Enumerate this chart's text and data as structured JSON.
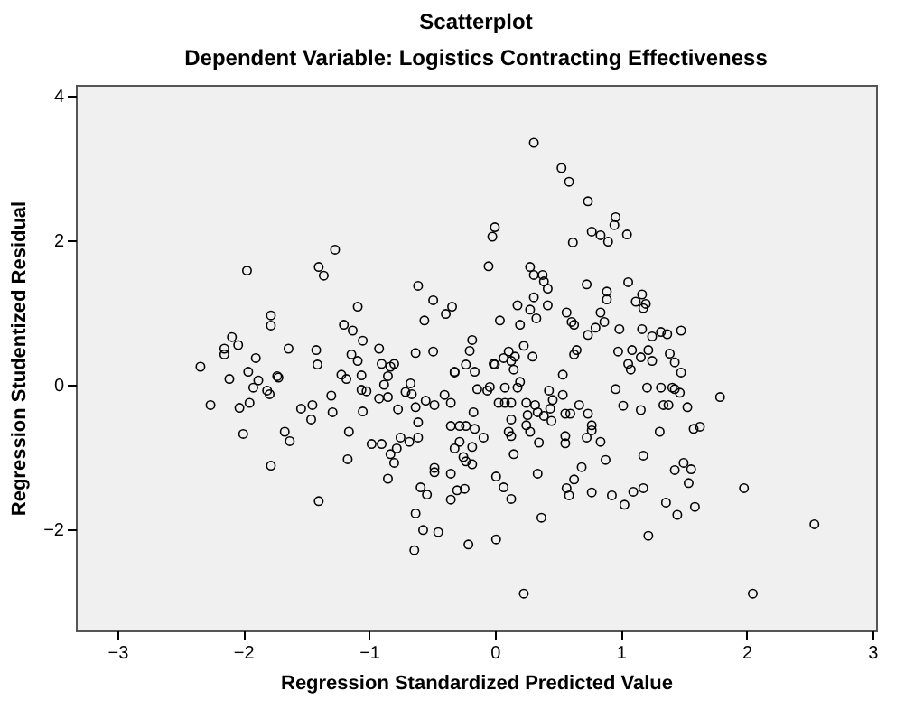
{
  "chart_data": {
    "type": "scatter",
    "title": "Scatterplot",
    "subtitle": "Dependent Variable: Logistics Contracting Effectiveness",
    "xlabel": "Regression Standardized Predicted Value",
    "ylabel": "Regression Studentized Residual",
    "xlim": [
      -3.33,
      3.03
    ],
    "ylim": [
      -3.4,
      4.15
    ],
    "xticks": [
      -3,
      -2,
      -1,
      0,
      1,
      2,
      3
    ],
    "yticks": [
      -2,
      0,
      2,
      4
    ],
    "grid": false,
    "marker": "circle",
    "series": [
      {
        "color": "#000000",
        "x": [
          -1.97,
          -1.4,
          -1.36,
          -1.27,
          -1.78,
          -1.78,
          -1.09,
          -1.2,
          -1.13,
          -1.05,
          -0.61,
          -0.49,
          -0.34,
          -0.39,
          -0.56,
          -2.09,
          -2.04,
          -2.15,
          -2.15,
          -1.9,
          -1.64,
          -1.42,
          -1.41,
          -2.34,
          -1.96,
          -1.73,
          -1.14,
          -1.09,
          -0.92,
          -0.9,
          -0.83,
          -0.63,
          -0.49,
          -0.18,
          -0.2,
          -0.32,
          0.31,
          0.53,
          0.59,
          0.74,
          0.96,
          0.95,
          0.77,
          0.84,
          0.9,
          1.05,
          0.62,
          0.0,
          -0.02,
          -0.05,
          0.28,
          0.31,
          0.38,
          0.39,
          0.42,
          0.73,
          1.06,
          0.89,
          0.89,
          1.17,
          1.12,
          1.2,
          1.18,
          0.18,
          0.31,
          0.28,
          0.33,
          0.42,
          0.04,
          0.2,
          0.57,
          0.61,
          0.63,
          0.84,
          0.87,
          0.8,
          0.74,
          0.99,
          1.17,
          1.25,
          1.32,
          1.37,
          1.48,
          -0.23,
          -0.16,
          0.0,
          0.11,
          0.16,
          0.23,
          0.3,
          0.65,
          0.63,
          0.98,
          1.09,
          1.06,
          1.16,
          1.25,
          1.22,
          1.39,
          1.43,
          1.48,
          0.54,
          -2.11,
          -2.26,
          -2.03,
          -1.95,
          -2.0,
          -1.92,
          -1.88,
          -1.81,
          -1.79,
          -1.72,
          -1.67,
          -1.63,
          -1.78,
          -1.54,
          -1.45,
          -1.46,
          -1.4,
          -1.3,
          -1.29,
          -1.22,
          -1.18,
          -1.16,
          -1.17,
          -1.06,
          -1.06,
          -1.02,
          -1.05,
          -0.92,
          -0.85,
          -0.88,
          -0.85,
          -0.8,
          -0.98,
          -0.9,
          -0.83,
          -0.8,
          -0.78,
          -0.85,
          -0.75,
          -0.68,
          -0.61,
          -0.77,
          -0.63,
          -0.55,
          -0.48,
          -0.4,
          -0.35,
          -0.66,
          -0.67,
          -0.71,
          -0.61,
          -0.48,
          -0.48,
          -0.59,
          -0.54,
          -0.63,
          -0.57,
          -0.45,
          -0.64,
          -0.35,
          -0.28,
          -0.23,
          -0.16,
          -0.32,
          -0.28,
          -0.25,
          -0.23,
          -0.18,
          -0.35,
          -0.3,
          -0.24,
          -0.35,
          -0.21,
          -0.32,
          -0.17,
          0.01,
          0.23,
          2.05,
          2.54,
          1.98,
          1.22,
          0.37,
          0.01,
          0.07,
          0.13,
          0.34,
          0.57,
          0.59,
          0.63,
          0.69,
          0.77,
          0.93,
          1.03,
          1.1,
          1.18,
          0.88,
          1.18,
          1.36,
          1.45,
          1.59,
          1.43,
          1.5,
          1.56,
          1.54,
          1.31,
          1.58,
          1.63,
          1.79,
          0.96,
          1.02,
          1.16,
          1.21,
          1.32,
          1.34,
          1.38,
          1.41,
          1.43,
          1.47,
          1.53,
          1.08,
          0.54,
          0.43,
          0.46,
          0.44,
          0.39,
          0.45,
          0.34,
          0.32,
          0.26,
          0.25,
          0.28,
          0.35,
          0.13,
          0.11,
          0.15,
          0.13,
          0.25,
          0.56,
          0.6,
          0.67,
          0.74,
          0.77,
          0.77,
          0.73,
          0.84,
          0.56,
          0.56,
          -0.09,
          -0.18,
          -0.14,
          -0.06,
          -0.04,
          -0.01,
          0.07,
          0.13,
          0.15,
          0.2,
          0.18,
          0.08,
          0.08,
          0.03,
          0.13
        ],
        "values": [
          1.58,
          1.63,
          1.51,
          1.87,
          0.96,
          0.82,
          1.08,
          0.83,
          0.75,
          0.61,
          1.37,
          1.17,
          1.08,
          0.98,
          0.89,
          0.66,
          0.55,
          0.5,
          0.42,
          0.37,
          0.5,
          0.48,
          0.28,
          0.25,
          0.18,
          0.12,
          0.42,
          0.33,
          0.5,
          0.29,
          0.25,
          0.44,
          0.46,
          0.62,
          0.47,
          0.18,
          3.35,
          3.0,
          2.81,
          2.54,
          2.32,
          2.21,
          2.12,
          2.07,
          1.98,
          2.08,
          1.97,
          2.18,
          2.05,
          1.64,
          1.63,
          1.52,
          1.52,
          1.43,
          1.33,
          1.39,
          1.42,
          1.29,
          1.18,
          1.25,
          1.15,
          1.12,
          1.06,
          1.1,
          1.21,
          1.04,
          0.92,
          1.1,
          0.89,
          0.83,
          1.0,
          0.87,
          0.83,
          1.0,
          0.87,
          0.79,
          0.69,
          0.77,
          0.77,
          0.67,
          0.73,
          0.7,
          0.75,
          0.28,
          0.18,
          0.28,
          0.46,
          0.39,
          0.54,
          0.39,
          0.48,
          0.42,
          0.46,
          0.48,
          0.29,
          0.38,
          0.33,
          0.48,
          0.43,
          0.31,
          0.17,
          0.14,
          0.08,
          -0.28,
          -0.32,
          -0.25,
          -0.68,
          -0.04,
          0.06,
          -0.08,
          -0.13,
          0.1,
          -0.65,
          -0.78,
          -1.12,
          -0.33,
          -0.28,
          -0.48,
          -1.61,
          -0.15,
          -0.38,
          0.14,
          0.08,
          -0.65,
          -1.03,
          0.13,
          -0.07,
          -0.09,
          -0.37,
          -0.19,
          -0.17,
          0.0,
          0.12,
          0.29,
          -0.82,
          -0.82,
          -0.96,
          -1.08,
          -0.88,
          -1.3,
          -0.73,
          -0.79,
          -0.73,
          -0.34,
          -0.31,
          -0.22,
          -0.28,
          -0.14,
          -0.25,
          -0.13,
          0.02,
          -0.1,
          -0.52,
          -1.15,
          -1.21,
          -1.42,
          -1.52,
          -1.78,
          -2.01,
          -2.04,
          -2.29,
          -0.57,
          -0.57,
          -0.57,
          -0.61,
          -0.88,
          -0.79,
          -1.0,
          -1.06,
          -1.1,
          -1.23,
          -1.46,
          -1.44,
          -1.59,
          -2.21,
          0.17,
          -0.38,
          -2.14,
          -2.89,
          -2.89,
          -1.93,
          -1.43,
          -2.09,
          -1.84,
          -1.27,
          -1.42,
          -1.58,
          -1.23,
          -1.43,
          -1.53,
          -1.31,
          -1.14,
          -1.49,
          -1.53,
          -1.66,
          -1.48,
          -1.43,
          -1.04,
          -0.98,
          -1.63,
          -1.8,
          -1.69,
          -1.18,
          -1.08,
          -1.17,
          -1.36,
          -0.65,
          -0.61,
          -0.58,
          -0.17,
          -0.06,
          -0.29,
          -0.35,
          -0.04,
          -0.04,
          -0.28,
          -0.28,
          -0.04,
          -0.06,
          -0.11,
          -0.31,
          0.21,
          -0.14,
          -0.08,
          -0.21,
          -0.33,
          -0.43,
          -0.5,
          -0.38,
          -0.28,
          -0.42,
          -0.56,
          -0.65,
          -0.8,
          -0.71,
          -0.65,
          -0.96,
          -0.48,
          -0.25,
          -0.4,
          -0.4,
          -0.28,
          -0.4,
          -0.56,
          -0.63,
          -0.73,
          -0.79,
          -0.71,
          -0.81,
          -0.73,
          -0.86,
          -0.06,
          -0.08,
          -0.03,
          0.29,
          0.37,
          0.33,
          0.21,
          0.04,
          -0.04,
          -0.25,
          -0.04,
          -0.25,
          -0.25
        ]
      }
    ]
  }
}
